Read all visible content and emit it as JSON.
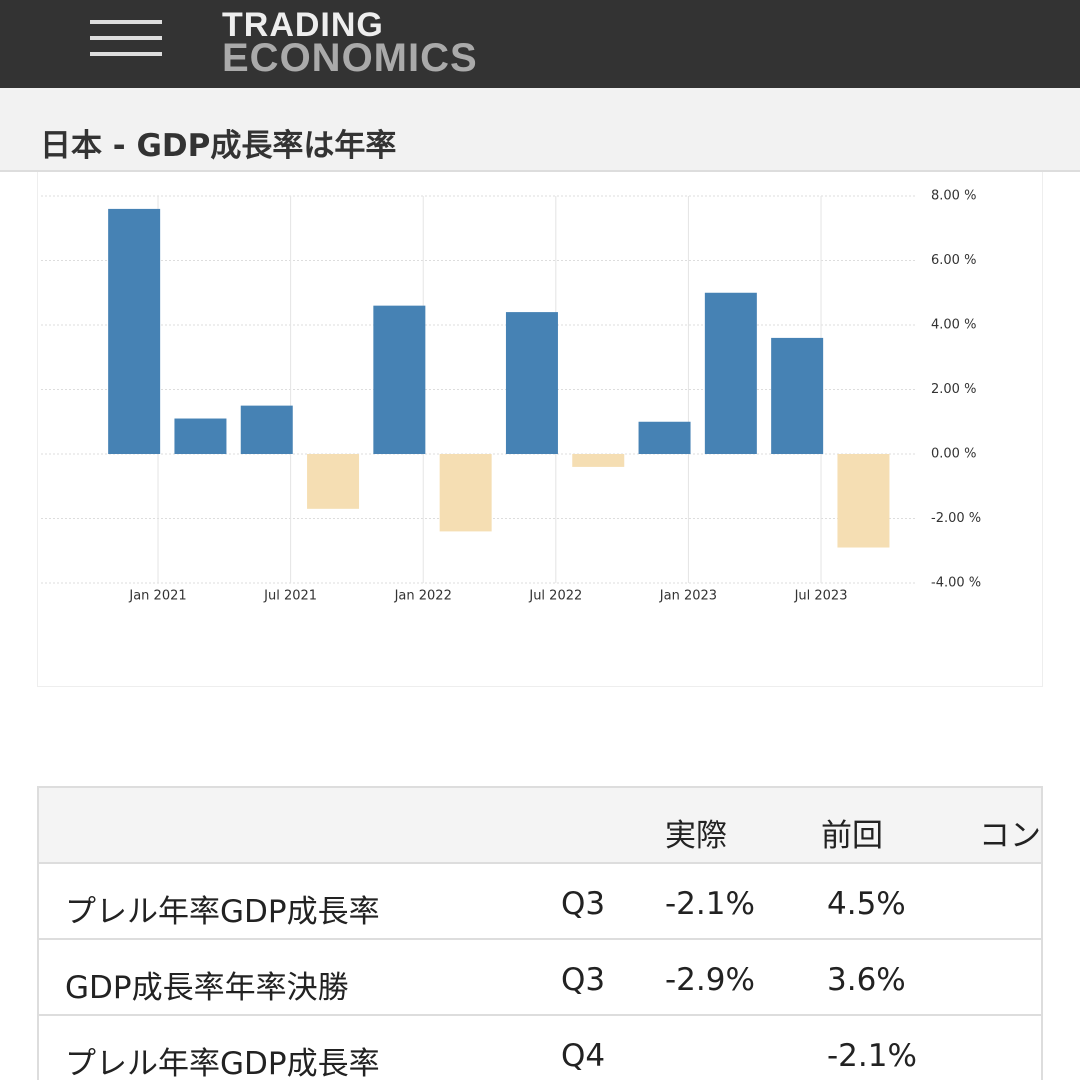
{
  "header": {
    "logo_top": "TRADING",
    "logo_bottom": "ECONOMICS",
    "title": "日本 - GDP成長率は年率"
  },
  "chart_data": {
    "type": "bar",
    "categories": [
      null,
      null,
      null,
      null,
      null,
      null,
      null,
      null,
      null,
      null,
      null,
      null
    ],
    "values": [
      7.6,
      1.1,
      1.5,
      -1.7,
      4.6,
      -2.4,
      4.4,
      -0.4,
      1.0,
      5.0,
      3.6,
      -2.9
    ],
    "colors": {
      "positive": "#4682b4",
      "negative": "#f5deb3"
    },
    "xticks": [
      "Jan 2021",
      "Jul 2021",
      "Jan 2022",
      "Jul 2022",
      "Jan 2023",
      "Jul 2023"
    ],
    "ylim": [
      -4,
      8
    ],
    "yticks": [
      {
        "value": -4,
        "label": "-4.00 %"
      },
      {
        "value": -2,
        "label": "-2.00 %"
      },
      {
        "value": 0,
        "label": "0.00 %"
      },
      {
        "value": 2,
        "label": "2.00 %"
      },
      {
        "value": 4,
        "label": "4.00 %"
      },
      {
        "value": 6,
        "label": "6.00 %"
      },
      {
        "value": 8,
        "label": "8.00 %"
      }
    ],
    "grid": true
  },
  "table": {
    "columns": [
      "実際",
      "前回",
      "コンセンサス"
    ],
    "rows": [
      {
        "name": "プレル年率GDP成長率",
        "period": "Q3",
        "actual": "-2.1%",
        "previous": "4.5%"
      },
      {
        "name": "GDP成長率年率決勝",
        "period": "Q3",
        "actual": "-2.9%",
        "previous": "3.6%"
      },
      {
        "name": "プレル年率GDP成長率",
        "period": "Q4",
        "previous": "-2.1%"
      }
    ]
  }
}
